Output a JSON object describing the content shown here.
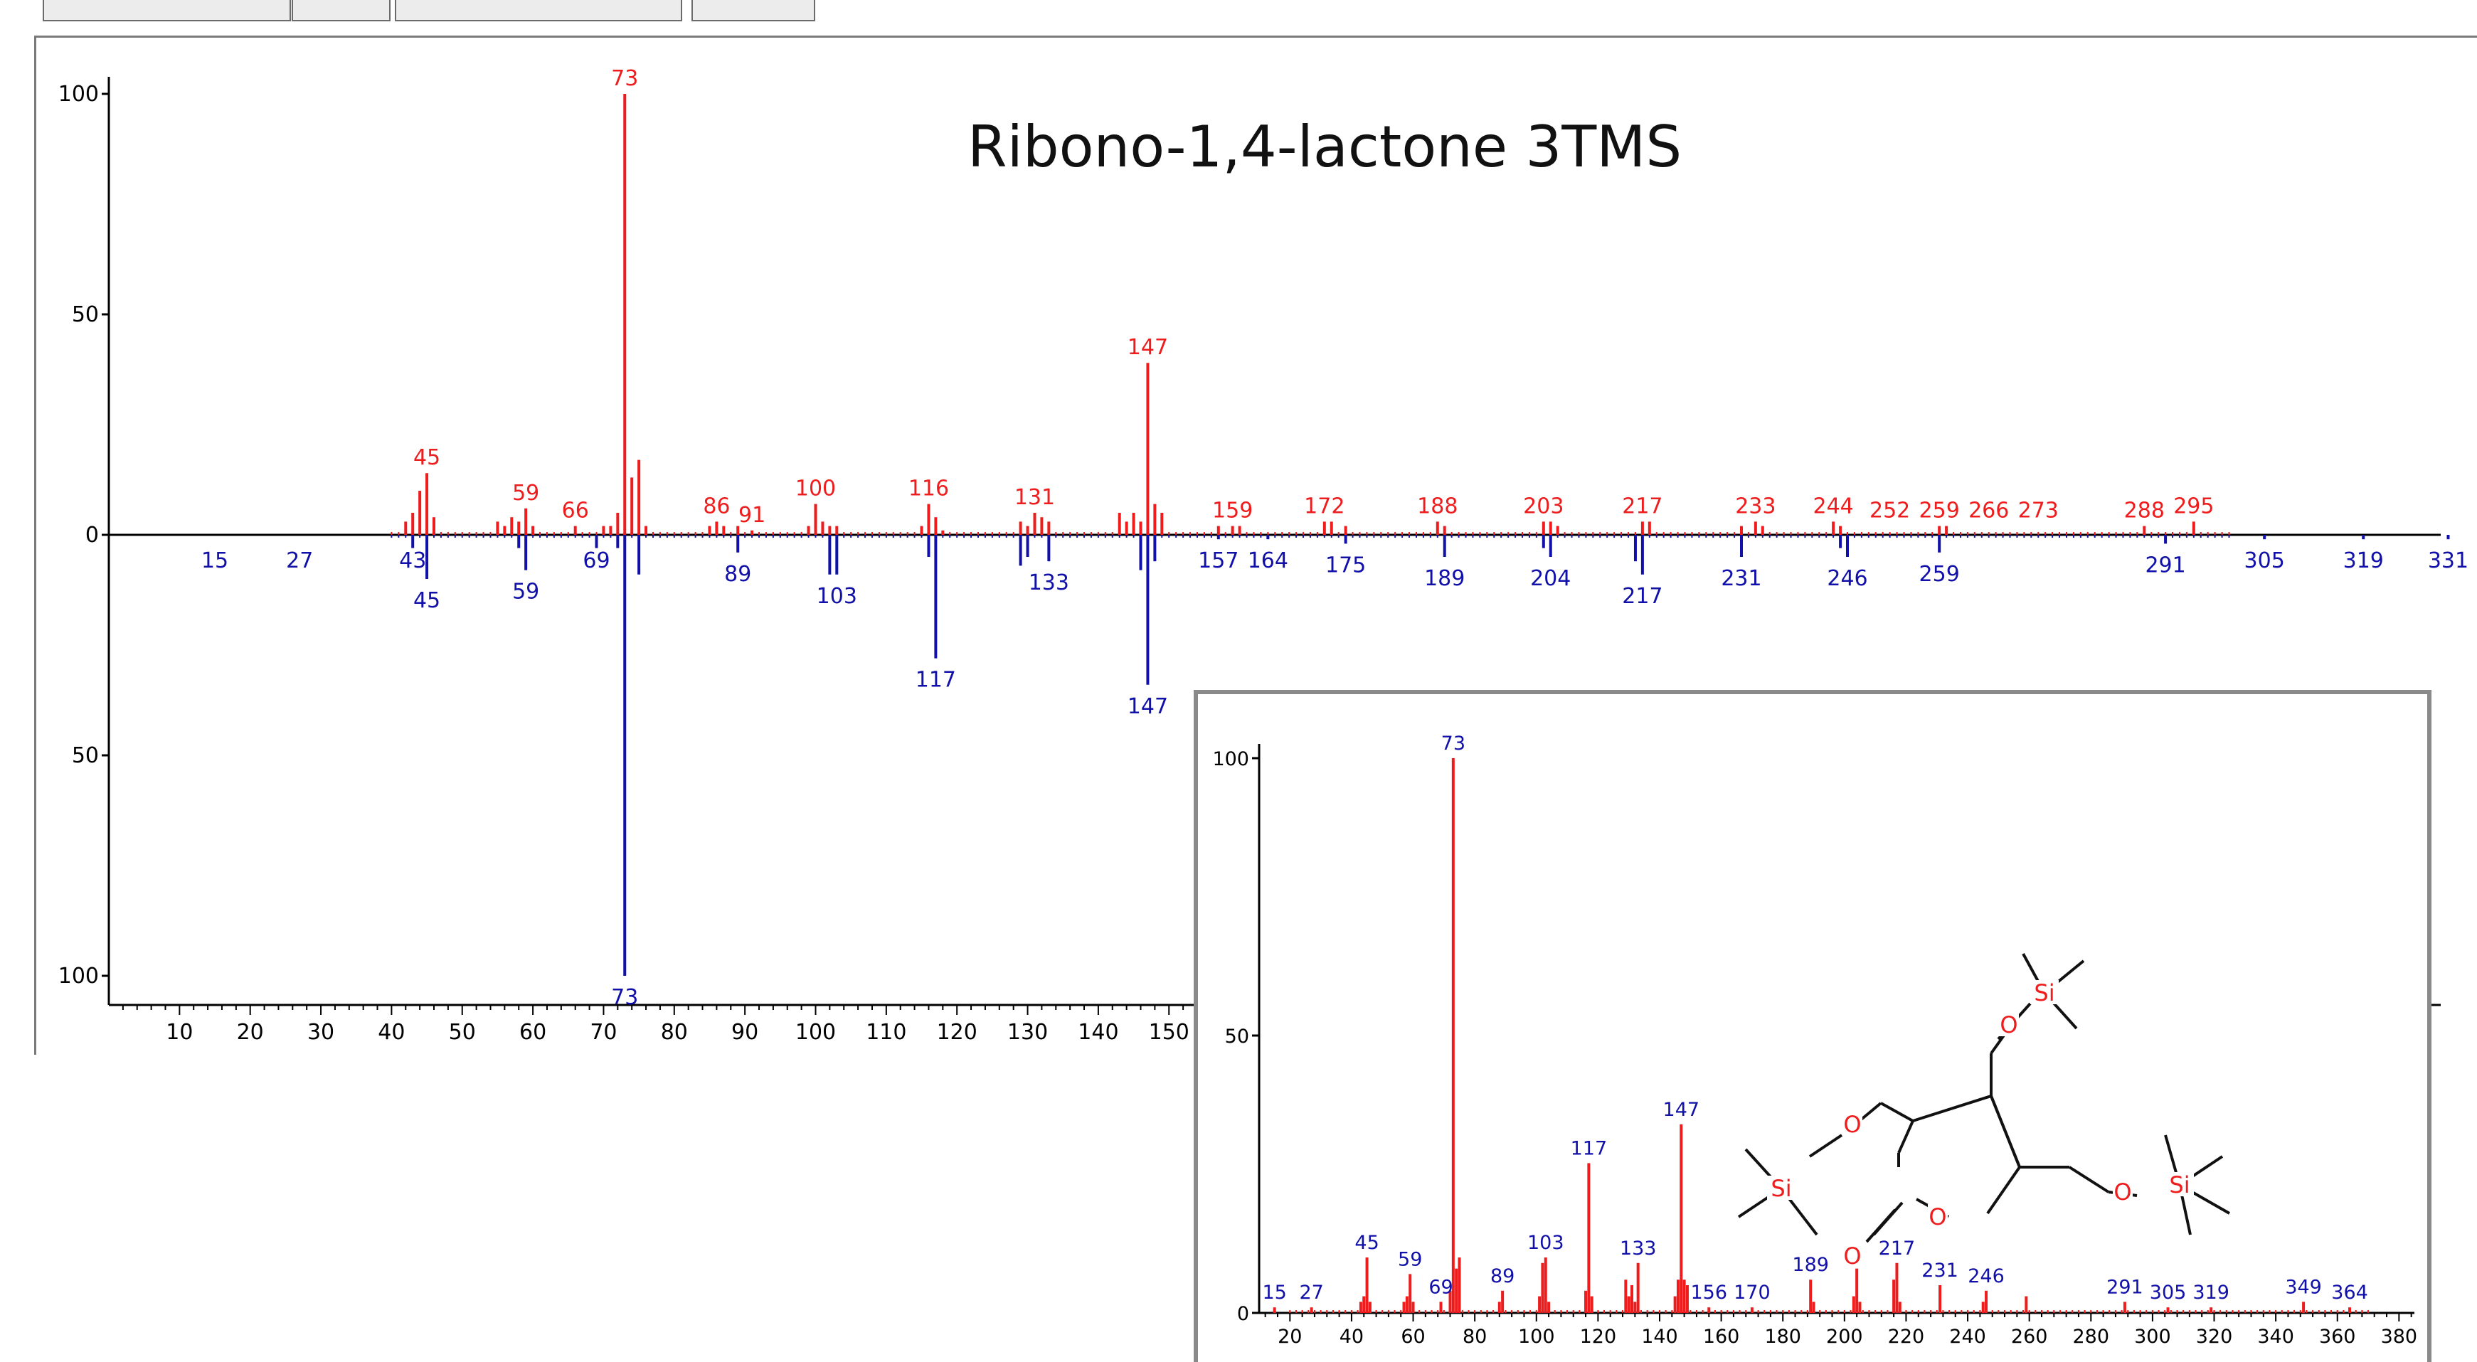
{
  "chart_data": [
    {
      "type": "mirror-bar",
      "title": "Ribono-1,4-lactone 3TMS",
      "xlim": [
        0,
        335
      ],
      "ylim_top": [
        0,
        100
      ],
      "ylim_bottom": [
        0,
        100
      ],
      "xticks": [
        10,
        20,
        30,
        40,
        50,
        60,
        70,
        80,
        90,
        100,
        110,
        120,
        130,
        140,
        150
      ],
      "yticks_top": [
        "100",
        "50",
        "0"
      ],
      "yticks_bottom": [
        "50",
        "100"
      ],
      "colors": {
        "top": "#ee1c1c",
        "bottom": "#1111aa",
        "axis": "#000000"
      },
      "series": [
        {
          "peaks": [
            [
              42,
              3
            ],
            [
              43,
              5
            ],
            [
              44,
              10
            ],
            [
              45,
              14
            ],
            [
              46,
              4
            ],
            [
              55,
              3
            ],
            [
              56,
              2
            ],
            [
              57,
              4
            ],
            [
              58,
              3
            ],
            [
              59,
              6
            ],
            [
              60,
              2
            ],
            [
              66,
              2
            ],
            [
              70,
              2
            ],
            [
              71,
              2
            ],
            [
              72,
              5
            ],
            [
              73,
              100
            ],
            [
              74,
              13
            ],
            [
              75,
              17
            ],
            [
              76,
              2
            ],
            [
              85,
              2
            ],
            [
              86,
              3
            ],
            [
              87,
              2
            ],
            [
              89,
              2
            ],
            [
              91,
              1
            ],
            [
              99,
              2
            ],
            [
              100,
              7
            ],
            [
              101,
              3
            ],
            [
              102,
              2
            ],
            [
              103,
              2
            ],
            [
              115,
              2
            ],
            [
              116,
              7
            ],
            [
              117,
              4
            ],
            [
              118,
              1
            ],
            [
              129,
              3
            ],
            [
              130,
              2
            ],
            [
              131,
              5
            ],
            [
              132,
              4
            ],
            [
              133,
              3
            ],
            [
              143,
              5
            ],
            [
              144,
              3
            ],
            [
              145,
              5
            ],
            [
              146,
              3
            ],
            [
              147,
              39
            ],
            [
              148,
              7
            ],
            [
              149,
              5
            ],
            [
              157,
              2
            ],
            [
              159,
              2
            ],
            [
              160,
              2
            ],
            [
              172,
              3
            ],
            [
              173,
              3
            ],
            [
              175,
              2
            ],
            [
              188,
              3
            ],
            [
              189,
              2
            ],
            [
              203,
              3
            ],
            [
              204,
              3
            ],
            [
              205,
              2
            ],
            [
              217,
              3
            ],
            [
              218,
              3
            ],
            [
              231,
              2
            ],
            [
              233,
              3
            ],
            [
              234,
              2
            ],
            [
              244,
              3
            ],
            [
              245,
              2
            ],
            [
              259,
              2
            ],
            [
              260,
              2
            ],
            [
              288,
              2
            ],
            [
              295,
              3
            ]
          ],
          "labels": [
            {
              "mz": "45",
              "x": 45,
              "y": 14
            },
            {
              "mz": "59",
              "x": 59,
              "y": 6
            },
            {
              "mz": "66",
              "x": 66,
              "y": 2
            },
            {
              "mz": "73",
              "x": 73,
              "y": 100
            },
            {
              "mz": "86",
              "x": 86,
              "y": 3
            },
            {
              "mz": "91",
              "x": 91,
              "y": 1
            },
            {
              "mz": "100",
              "x": 100,
              "y": 7
            },
            {
              "mz": "116",
              "x": 116,
              "y": 7
            },
            {
              "mz": "131",
              "x": 131,
              "y": 5
            },
            {
              "mz": "147",
              "x": 147,
              "y": 39
            },
            {
              "mz": "159",
              "x": 159,
              "y": 2
            },
            {
              "mz": "172",
              "x": 172,
              "y": 3
            },
            {
              "mz": "188",
              "x": 188,
              "y": 3
            },
            {
              "mz": "203",
              "x": 203,
              "y": 3
            },
            {
              "mz": "217",
              "x": 217,
              "y": 3
            },
            {
              "mz": "233",
              "x": 233,
              "y": 3
            },
            {
              "mz": "244",
              "x": 244,
              "y": 3
            },
            {
              "mz": "252",
              "x": 252,
              "y": 2
            },
            {
              "mz": "259",
              "x": 259,
              "y": 2
            },
            {
              "mz": "266",
              "x": 266,
              "y": 2
            },
            {
              "mz": "273",
              "x": 273,
              "y": 2
            },
            {
              "mz": "288",
              "x": 288,
              "y": 2
            },
            {
              "mz": "295",
              "x": 295,
              "y": 3
            }
          ]
        },
        {
          "peaks": [
            [
              43,
              3
            ],
            [
              45,
              10
            ],
            [
              58,
              3
            ],
            [
              59,
              8
            ],
            [
              69,
              3
            ],
            [
              72,
              3
            ],
            [
              73,
              100
            ],
            [
              75,
              9
            ],
            [
              89,
              4
            ],
            [
              102,
              9
            ],
            [
              103,
              9
            ],
            [
              116,
              5
            ],
            [
              117,
              28
            ],
            [
              129,
              7
            ],
            [
              130,
              5
            ],
            [
              133,
              6
            ],
            [
              146,
              8
            ],
            [
              147,
              34
            ],
            [
              148,
              6
            ],
            [
              157,
              1
            ],
            [
              164,
              1
            ],
            [
              175,
              2
            ],
            [
              189,
              5
            ],
            [
              203,
              3
            ],
            [
              204,
              5
            ],
            [
              216,
              6
            ],
            [
              217,
              9
            ],
            [
              231,
              5
            ],
            [
              245,
              3
            ],
            [
              246,
              5
            ],
            [
              259,
              4
            ],
            [
              291,
              2
            ],
            [
              305,
              1
            ],
            [
              319,
              1
            ],
            [
              331,
              1
            ]
          ],
          "labels": [
            {
              "mz": "15",
              "x": 15,
              "y": 1
            },
            {
              "mz": "27",
              "x": 27,
              "y": 1
            },
            {
              "mz": "43",
              "x": 43,
              "y": 1
            },
            {
              "mz": "45",
              "x": 45,
              "y": 10
            },
            {
              "mz": "59",
              "x": 59,
              "y": 8
            },
            {
              "mz": "69",
              "x": 69,
              "y": 1
            },
            {
              "mz": "73",
              "x": 73,
              "y": 100
            },
            {
              "mz": "89",
              "x": 89,
              "y": 4
            },
            {
              "mz": "103",
              "x": 103,
              "y": 9
            },
            {
              "mz": "117",
              "x": 117,
              "y": 28
            },
            {
              "mz": "133",
              "x": 133,
              "y": 6
            },
            {
              "mz": "147",
              "x": 147,
              "y": 34
            },
            {
              "mz": "157",
              "x": 157,
              "y": 1
            },
            {
              "mz": "164",
              "x": 164,
              "y": 1
            },
            {
              "mz": "175",
              "x": 175,
              "y": 2
            },
            {
              "mz": "189",
              "x": 189,
              "y": 5
            },
            {
              "mz": "204",
              "x": 204,
              "y": 5
            },
            {
              "mz": "217",
              "x": 217,
              "y": 9
            },
            {
              "mz": "231",
              "x": 231,
              "y": 5
            },
            {
              "mz": "246",
              "x": 246,
              "y": 5
            },
            {
              "mz": "259",
              "x": 259,
              "y": 4
            },
            {
              "mz": "291",
              "x": 291,
              "y": 2
            },
            {
              "mz": "305",
              "x": 305,
              "y": 1
            },
            {
              "mz": "319",
              "x": 319,
              "y": 1
            },
            {
              "mz": "331",
              "x": 331,
              "y": 1
            }
          ]
        }
      ]
    },
    {
      "type": "bar",
      "xlim": [
        10,
        385
      ],
      "ylim": [
        0,
        100
      ],
      "xticks": [
        20,
        40,
        60,
        80,
        100,
        120,
        140,
        160,
        180,
        200,
        220,
        240,
        260,
        280,
        300,
        320,
        340,
        360,
        380
      ],
      "yticks": [
        "100",
        "50",
        "0"
      ],
      "colors": {
        "bars": "#ee1c1c",
        "labels": "#1111aa",
        "axis": "#000000",
        "molecule": "#111111",
        "oxygen": "#ee1c1c",
        "silicon": "#ee1c1c"
      },
      "peaks": [
        [
          15,
          1
        ],
        [
          27,
          1
        ],
        [
          43,
          2
        ],
        [
          44,
          3
        ],
        [
          45,
          10
        ],
        [
          46,
          2
        ],
        [
          57,
          2
        ],
        [
          58,
          3
        ],
        [
          59,
          7
        ],
        [
          60,
          2
        ],
        [
          69,
          2
        ],
        [
          72,
          4
        ],
        [
          73,
          100
        ],
        [
          74,
          8
        ],
        [
          75,
          10
        ],
        [
          88,
          2
        ],
        [
          89,
          4
        ],
        [
          101,
          3
        ],
        [
          102,
          9
        ],
        [
          103,
          10
        ],
        [
          104,
          2
        ],
        [
          116,
          4
        ],
        [
          117,
          27
        ],
        [
          118,
          3
        ],
        [
          129,
          6
        ],
        [
          130,
          3
        ],
        [
          131,
          5
        ],
        [
          132,
          2
        ],
        [
          133,
          9
        ],
        [
          145,
          3
        ],
        [
          146,
          6
        ],
        [
          147,
          34
        ],
        [
          148,
          6
        ],
        [
          149,
          5
        ],
        [
          156,
          1
        ],
        [
          170,
          1
        ],
        [
          189,
          6
        ],
        [
          190,
          2
        ],
        [
          203,
          3
        ],
        [
          204,
          8
        ],
        [
          205,
          2
        ],
        [
          216,
          6
        ],
        [
          217,
          9
        ],
        [
          218,
          2
        ],
        [
          231,
          5
        ],
        [
          245,
          2
        ],
        [
          246,
          4
        ],
        [
          259,
          3
        ],
        [
          291,
          2
        ],
        [
          305,
          1
        ],
        [
          319,
          1
        ],
        [
          349,
          2
        ],
        [
          364,
          1
        ]
      ],
      "labels": [
        {
          "mz": "15",
          "x": 15,
          "y": 1
        },
        {
          "mz": "27",
          "x": 27,
          "y": 1
        },
        {
          "mz": "45",
          "x": 45,
          "y": 10
        },
        {
          "mz": "59",
          "x": 59,
          "y": 7
        },
        {
          "mz": "69",
          "x": 69,
          "y": 2
        },
        {
          "mz": "73",
          "x": 73,
          "y": 100
        },
        {
          "mz": "89",
          "x": 89,
          "y": 4
        },
        {
          "mz": "103",
          "x": 103,
          "y": 10
        },
        {
          "mz": "117",
          "x": 117,
          "y": 27
        },
        {
          "mz": "133",
          "x": 133,
          "y": 9
        },
        {
          "mz": "147",
          "x": 147,
          "y": 34
        },
        {
          "mz": "156",
          "x": 156,
          "y": 1
        },
        {
          "mz": "170",
          "x": 170,
          "y": 1
        },
        {
          "mz": "189",
          "x": 189,
          "y": 6
        },
        {
          "mz": "217",
          "x": 217,
          "y": 9
        },
        {
          "mz": "231",
          "x": 231,
          "y": 5
        },
        {
          "mz": "246",
          "x": 246,
          "y": 4
        },
        {
          "mz": "291",
          "x": 291,
          "y": 2
        },
        {
          "mz": "305",
          "x": 305,
          "y": 1
        },
        {
          "mz": "319",
          "x": 319,
          "y": 1
        },
        {
          "mz": "349",
          "x": 349,
          "y": 2
        },
        {
          "mz": "364",
          "x": 364,
          "y": 1
        }
      ],
      "molecule_atoms": {
        "oxygen": "O",
        "silicon": "Si"
      }
    }
  ]
}
